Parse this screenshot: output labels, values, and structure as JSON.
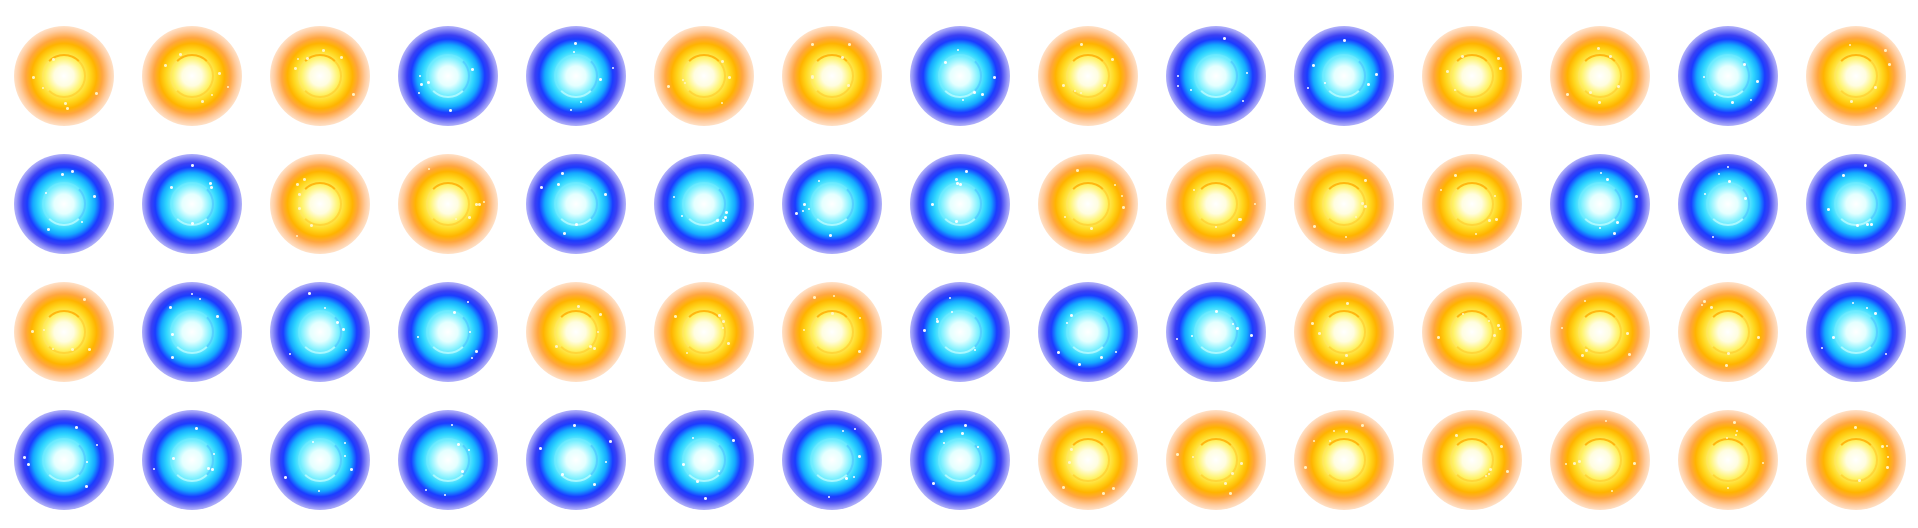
{
  "sprite_sheet": {
    "columns": 15,
    "rows": 4,
    "colors": {
      "orange": "#ffb300",
      "blue": "#1a3cff"
    },
    "cells": [
      "orange",
      "orange",
      "orange",
      "blue",
      "blue",
      "orange",
      "orange",
      "blue",
      "orange",
      "blue",
      "blue",
      "orange",
      "orange",
      "blue",
      "orange",
      "blue",
      "blue",
      "orange",
      "orange",
      "blue",
      "blue",
      "blue",
      "blue",
      "orange",
      "orange",
      "orange",
      "orange",
      "blue",
      "blue",
      "blue",
      "orange",
      "blue",
      "blue",
      "blue",
      "orange",
      "orange",
      "orange",
      "blue",
      "blue",
      "blue",
      "orange",
      "orange",
      "orange",
      "orange",
      "blue",
      "blue",
      "blue",
      "blue",
      "blue",
      "blue",
      "blue",
      "blue",
      "blue",
      "orange",
      "orange",
      "orange",
      "orange",
      "orange",
      "orange",
      "orange"
    ]
  }
}
